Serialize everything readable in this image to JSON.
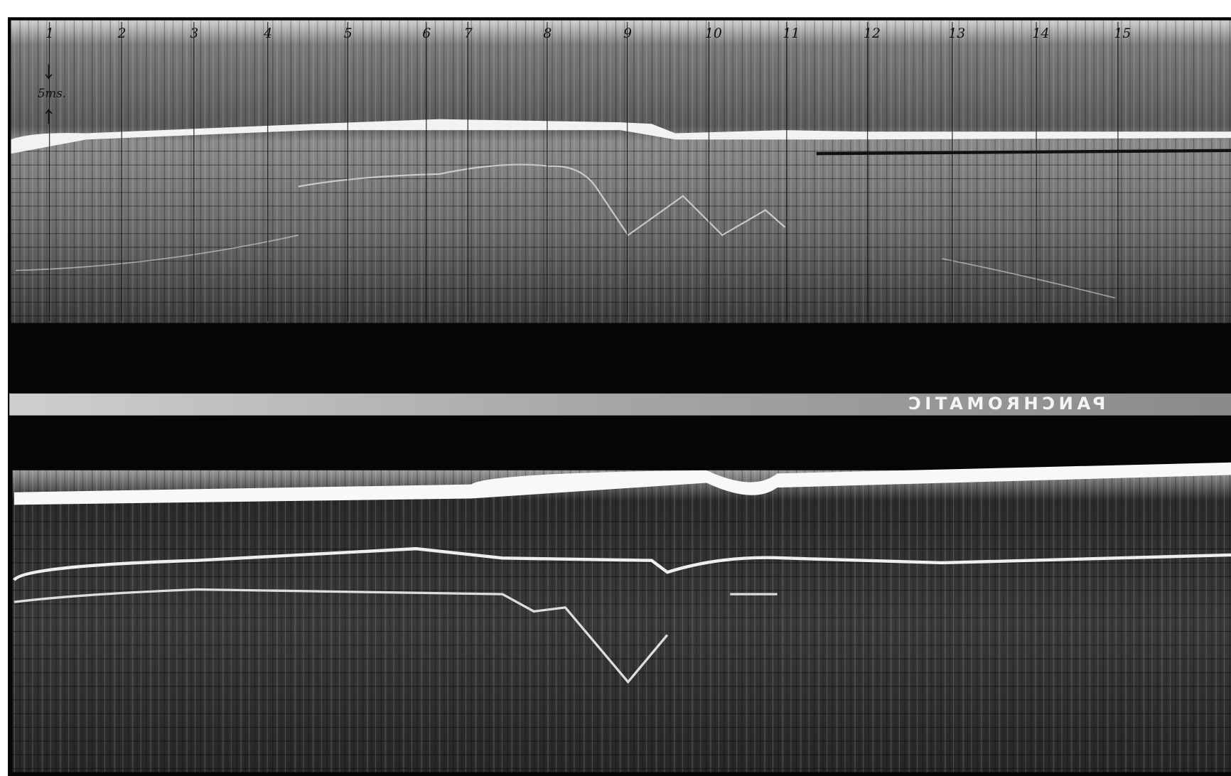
{
  "record": {
    "fix_marks": [
      "1",
      "2",
      "3",
      "4",
      "5",
      "6",
      "7",
      "8",
      "9",
      "10",
      "11",
      "12",
      "13",
      "14",
      "15"
    ],
    "scale_label": "5ms.",
    "film_edge_text": "PANCHROMATIC"
  }
}
